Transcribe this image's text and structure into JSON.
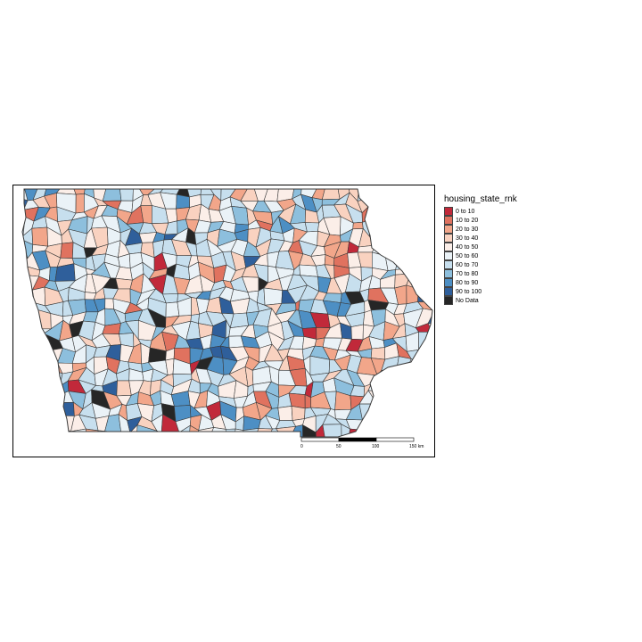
{
  "legend": {
    "title": "housing_state_rnk",
    "items": [
      {
        "label": "0 to 10",
        "color": "#c1293a"
      },
      {
        "label": "10 to 20",
        "color": "#e0725f"
      },
      {
        "label": "20 to 30",
        "color": "#f2a68a"
      },
      {
        "label": "30 to 40",
        "color": "#f9d2c0"
      },
      {
        "label": "40 to 50",
        "color": "#fbeee8"
      },
      {
        "label": "50 to 60",
        "color": "#eaf2f7"
      },
      {
        "label": "60 to 70",
        "color": "#c7dfee"
      },
      {
        "label": "70 to 80",
        "color": "#8dbfdd"
      },
      {
        "label": "80 to 90",
        "color": "#4d8fc4"
      },
      {
        "label": "90 to 100",
        "color": "#2f5f9b"
      },
      {
        "label": "No Data",
        "color": "#262626"
      }
    ]
  },
  "scale_bar": {
    "labels": [
      "0",
      "50",
      "100",
      "150 km"
    ]
  },
  "map": {
    "region": "Iowa",
    "border_color": "#3a3a3a"
  }
}
